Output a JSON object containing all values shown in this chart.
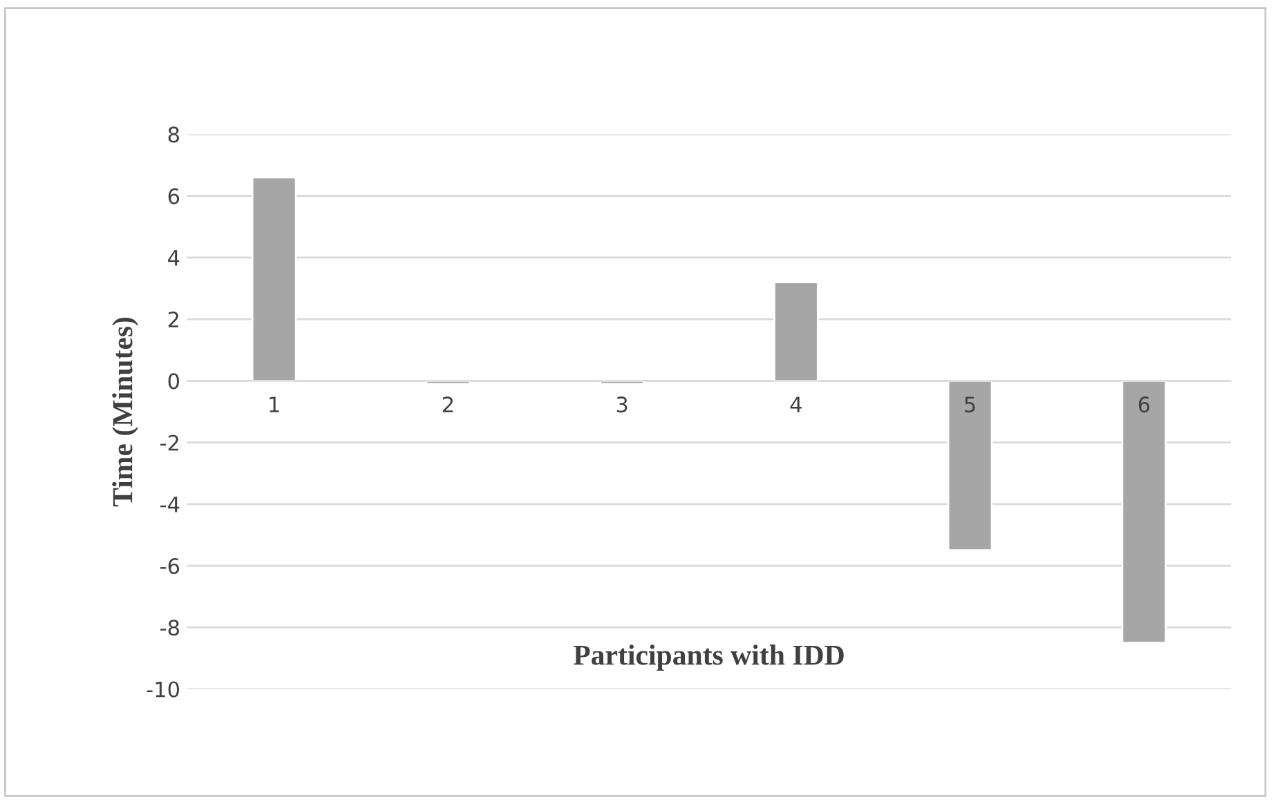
{
  "chart_data": {
    "type": "bar",
    "xlabel": "Participants with IDD",
    "ylabel": "Time (Minutes)",
    "categories": [
      "1",
      "2",
      "3",
      "4",
      "5",
      "6"
    ],
    "values": [
      6.6,
      -0.1,
      -0.1,
      3.2,
      -5.5,
      -8.5
    ],
    "color": "#a6a6a6",
    "ylim": [
      -10,
      8
    ],
    "yticks": [
      -10,
      -8,
      -6,
      -4,
      -2,
      0,
      2,
      4,
      6,
      8
    ],
    "grid": "y"
  }
}
